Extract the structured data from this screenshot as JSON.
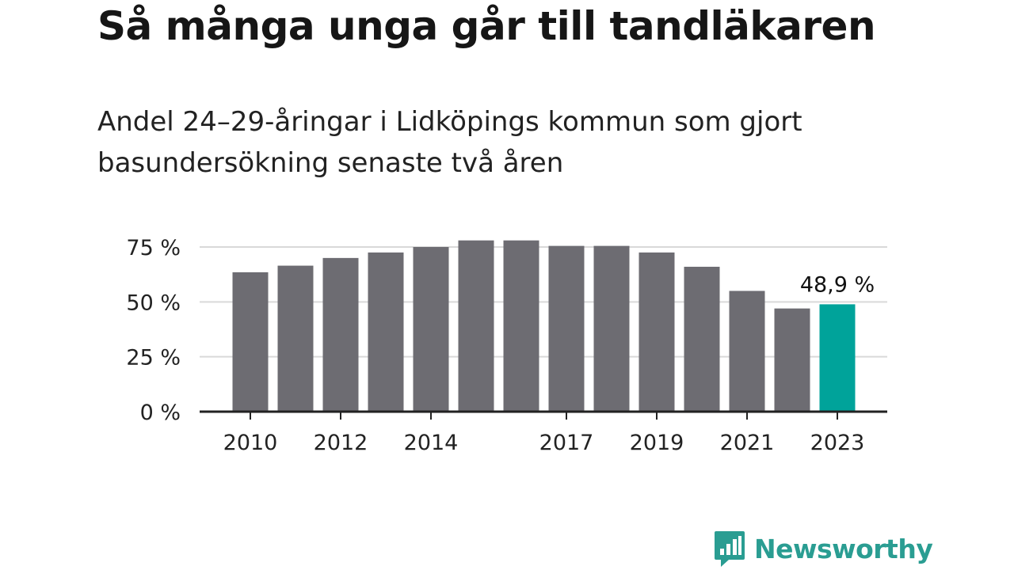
{
  "title": "Så många unga går till tandläkaren",
  "subtitle": "Andel 24–29-åringar i Lidköpings kommun som gjort basundersökning senaste två åren",
  "brand": {
    "name": "Newsworthy",
    "icon": "newsworthy-logo-icon",
    "color": "#2a9d92"
  },
  "colors": {
    "bar": "#6d6c72",
    "highlight": "#00a39a",
    "grid": "#d9d9d9",
    "axis": "#222222"
  },
  "chart_data": {
    "type": "bar",
    "categories": [
      "2010",
      "2011",
      "2012",
      "2013",
      "2014",
      "2015",
      "2016",
      "2017",
      "2018",
      "2019",
      "2020",
      "2021",
      "2022",
      "2023"
    ],
    "values": [
      63.5,
      66.5,
      70,
      72.5,
      75,
      78,
      78,
      75.5,
      75.5,
      72.5,
      66,
      55,
      47,
      48.9
    ],
    "x_tick_labels": [
      "2010",
      "2012",
      "2014",
      "2017",
      "2019",
      "2021",
      "2023"
    ],
    "y_ticks": [
      0,
      25,
      50,
      75
    ],
    "y_tick_labels": [
      "0 %",
      "25 %",
      "50 %",
      "75 %"
    ],
    "ylim": [
      0,
      80
    ],
    "highlight_category": "2023",
    "data_label": {
      "category": "2023",
      "text": "48,9 %"
    },
    "grid": true
  }
}
